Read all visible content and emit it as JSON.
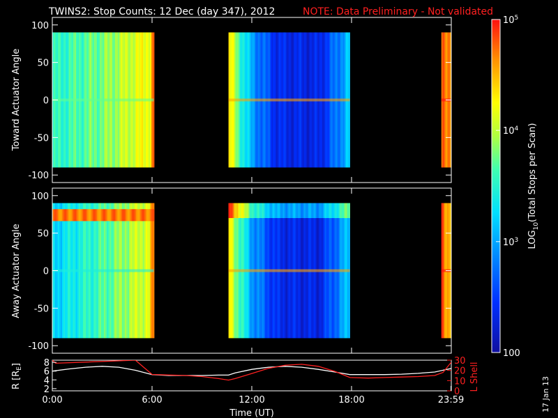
{
  "title": "TWINS2: Stop Counts: 12 Dec (day 347), 2012",
  "note": "NOTE: Data Preliminary - Not validated",
  "date_stamp": "17 Jan 13",
  "colors": {
    "background": "#000000",
    "axes": "#ffffff",
    "note": "#ff2020",
    "r_line": "#ffffff",
    "lshell_line": "#ff2020"
  },
  "chart_data": [
    {
      "type": "heatmap",
      "ylabel": "Toward Actuator Angle",
      "xlim": [
        0,
        24
      ],
      "ylim": [
        -110,
        110
      ],
      "data_ylim": [
        -90,
        90
      ],
      "yticks": [
        "100",
        "50",
        "0",
        "-50",
        "-100"
      ],
      "colorscale": "log",
      "segments": [
        {
          "x": [
            0.0,
            6.1
          ],
          "profile": [
            [
              0,
              0.5
            ],
            [
              3,
              0.6
            ],
            [
              5.8,
              0.75
            ],
            [
              6.1,
              0.95
            ]
          ]
        },
        {
          "x": [
            10.6,
            17.9
          ],
          "profile": [
            [
              10.6,
              0.78
            ],
            [
              11.2,
              0.55
            ],
            [
              12.0,
              0.32
            ],
            [
              13.5,
              0.12
            ],
            [
              16.0,
              0.1
            ],
            [
              17.0,
              0.25
            ],
            [
              17.9,
              0.4
            ]
          ]
        },
        {
          "x": [
            23.4,
            24.0
          ],
          "profile": [
            [
              23.4,
              0.92
            ],
            [
              23.7,
              0.85
            ],
            [
              24.0,
              0.9
            ]
          ]
        }
      ]
    },
    {
      "type": "heatmap",
      "ylabel": "Away Actuator Angle",
      "xlim": [
        0,
        24
      ],
      "ylim": [
        -110,
        110
      ],
      "data_ylim": [
        -90,
        90
      ],
      "yticks": [
        "100",
        "50",
        "0",
        "-50",
        "-100"
      ],
      "colorscale": "log",
      "segments": [
        {
          "x": [
            0.0,
            6.1
          ],
          "profile": [
            [
              0,
              0.4
            ],
            [
              3,
              0.55
            ],
            [
              5.8,
              0.72
            ],
            [
              6.1,
              0.95
            ]
          ]
        },
        {
          "x": [
            10.6,
            17.9
          ],
          "profile": [
            [
              10.6,
              0.78
            ],
            [
              11.2,
              0.55
            ],
            [
              12.0,
              0.32
            ],
            [
              13.5,
              0.12
            ],
            [
              16.0,
              0.1
            ],
            [
              17.0,
              0.25
            ],
            [
              17.9,
              0.4
            ]
          ]
        },
        {
          "x": [
            23.4,
            24.0
          ],
          "profile": [
            [
              23.4,
              0.92
            ],
            [
              23.7,
              0.85
            ],
            [
              24.0,
              0.9
            ]
          ]
        }
      ]
    },
    {
      "type": "line",
      "xlabel": "Time (UT)",
      "ylabel": "R [R",
      "ylabel_sub": "E",
      "ylabel_end": "]",
      "ylim": [
        1.5,
        8.5
      ],
      "yticks": [
        "8",
        "6",
        "4",
        "2"
      ],
      "xticks": [
        "0:00",
        "6:00",
        "12:00",
        "18:00",
        "23:59"
      ],
      "y2label": "L Shell",
      "y2lim": [
        0,
        30
      ],
      "y2ticks": [
        "30",
        "20",
        "10",
        "0"
      ],
      "series": [
        {
          "axis": "left",
          "x": [
            0,
            1,
            2,
            3,
            4,
            5,
            6.0,
            7,
            8,
            9,
            10,
            10.6,
            11,
            12,
            13,
            14,
            15,
            16,
            17,
            17.9,
            19,
            20,
            21,
            22,
            23,
            24
          ],
          "y": [
            6.0,
            6.5,
            6.9,
            7.1,
            6.9,
            6.2,
            5.2,
            5.0,
            5.0,
            5.0,
            5.1,
            5.1,
            5.6,
            6.4,
            6.9,
            7.1,
            6.9,
            6.4,
            5.8,
            5.2,
            5.2,
            5.2,
            5.3,
            5.5,
            5.8,
            6.6
          ]
        },
        {
          "axis": "right",
          "x": [
            0,
            0.2,
            5.0,
            6.0,
            7,
            8,
            9,
            10,
            10.6,
            11,
            12,
            13,
            14,
            15,
            16,
            17,
            17.9,
            19,
            20,
            21,
            22,
            23,
            23.5,
            24
          ],
          "y": [
            30,
            27,
            30,
            16,
            15.5,
            15,
            14,
            12,
            10.5,
            12,
            17,
            22,
            25,
            26,
            24,
            19,
            13,
            12.5,
            13,
            13.5,
            14,
            15,
            18,
            28
          ]
        }
      ]
    }
  ],
  "colorbar": {
    "label": "LOG",
    "label_sub": "10",
    "label_end": "(Total Stops per Scan)",
    "ticks": [
      {
        "value": 0,
        "text": "100",
        "exp": ""
      },
      {
        "value": 0.333,
        "text": "10",
        "exp": "3"
      },
      {
        "value": 0.667,
        "text": "10",
        "exp": "4"
      },
      {
        "value": 1,
        "text": "10",
        "exp": "5"
      }
    ]
  }
}
